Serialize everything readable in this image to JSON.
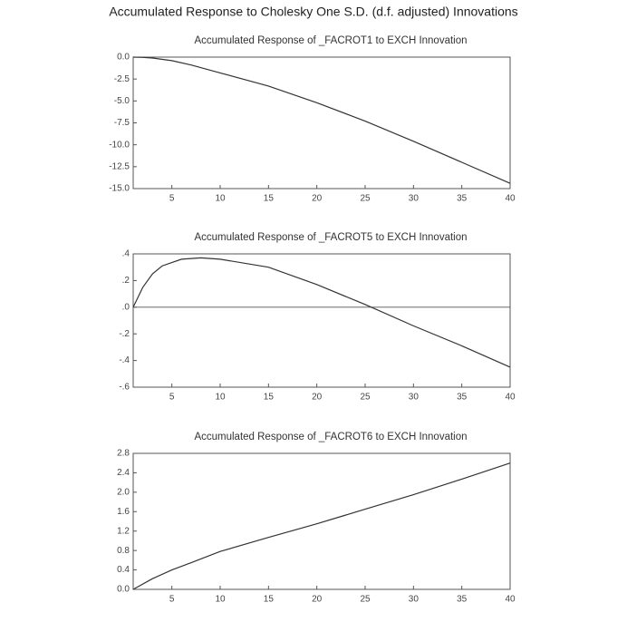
{
  "title": "Accumulated Response to Cholesky One S.D. (d.f. adjusted) Innovations",
  "chart_data": [
    {
      "type": "line",
      "title": "Accumulated Response of _FACROT1 to EXCH Innovation",
      "x": [
        1,
        2,
        3,
        5,
        7,
        10,
        15,
        20,
        25,
        30,
        35,
        40
      ],
      "series": [
        {
          "color": "#333333",
          "values": [
            0,
            -0.03,
            -0.1,
            -0.4,
            -0.9,
            -1.8,
            -3.3,
            -5.2,
            -7.3,
            -9.6,
            -12,
            -14.4
          ]
        }
      ],
      "xlim": [
        1,
        40
      ],
      "xticks": [
        5,
        10,
        15,
        20,
        25,
        30,
        35,
        40
      ],
      "ylim": [
        -15,
        0
      ],
      "yticks": [
        {
          "value": 0,
          "label": "0.0"
        },
        -2.5,
        {
          "value": -5,
          "label": "-5.0"
        },
        -7.5,
        {
          "value": -10,
          "label": "-10.0"
        },
        -12.5,
        {
          "value": -15,
          "label": "-15.0"
        }
      ]
    },
    {
      "type": "line",
      "title": "Accumulated Response of _FACROT5 to EXCH Innovation",
      "x": [
        1,
        2,
        3,
        4,
        6,
        8,
        10,
        15,
        20,
        25,
        30,
        35,
        40
      ],
      "series": [
        {
          "color": "#333333",
          "values": [
            0,
            0.15,
            0.25,
            0.31,
            0.36,
            0.37,
            0.36,
            0.3,
            0.17,
            0.02,
            -0.14,
            -0.29,
            -0.45
          ]
        }
      ],
      "xlim": [
        1,
        40
      ],
      "xticks": [
        5,
        10,
        15,
        20,
        25,
        30,
        35,
        40
      ],
      "ylim": [
        -0.6,
        0.4
      ],
      "yticks": [
        {
          "value": 0.4,
          "label": ".4"
        },
        {
          "value": 0.2,
          "label": ".2"
        },
        {
          "value": 0,
          "label": ".0"
        },
        {
          "value": -0.2,
          "label": "-.2"
        },
        {
          "value": -0.4,
          "label": "-.4"
        },
        {
          "value": -0.6,
          "label": "-.6"
        }
      ],
      "zero_line": true
    },
    {
      "type": "line",
      "title": "Accumulated Response of _FACROT6 to EXCH Innovation",
      "x": [
        1,
        3,
        5,
        7,
        10,
        15,
        20,
        25,
        30,
        35,
        40
      ],
      "series": [
        {
          "color": "#333333",
          "values": [
            0,
            0.22,
            0.4,
            0.55,
            0.78,
            1.07,
            1.35,
            1.65,
            1.95,
            2.27,
            2.6
          ]
        }
      ],
      "xlim": [
        1,
        40
      ],
      "xticks": [
        5,
        10,
        15,
        20,
        25,
        30,
        35,
        40
      ],
      "ylim": [
        0,
        2.8
      ],
      "yticks": [
        {
          "value": 0,
          "label": "0.0"
        },
        0.4,
        0.8,
        1.2,
        1.6,
        {
          "value": 2,
          "label": "2.0"
        },
        2.4,
        2.8
      ]
    }
  ]
}
